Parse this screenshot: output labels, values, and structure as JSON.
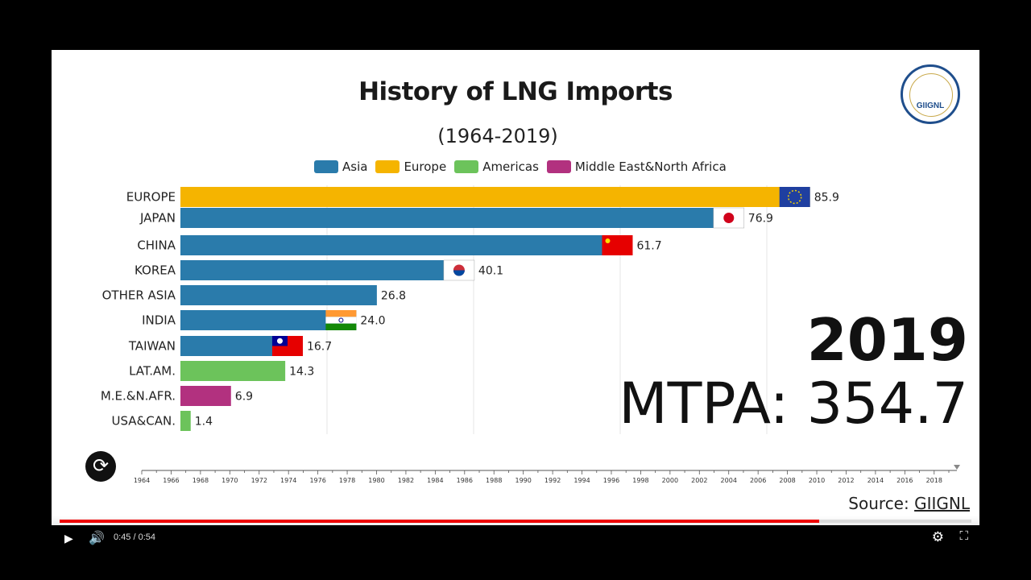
{
  "player": {
    "time": "0:45 / 0:54",
    "progress_fraction": 0.8333,
    "play_icon": "play-icon",
    "volume_icon": "volume-icon",
    "settings_icon": "gear-icon",
    "fullscreen_exit_icon": "exit-fullscreen-icon"
  },
  "video": {
    "title": "History of LNG Imports",
    "subtitle": "(1964-2019)",
    "year": "2019",
    "mtpa": "MTPA: 354.7",
    "source_prefix": "Source: ",
    "source_link": "GIIGNL",
    "logo_text": "GIIGNL"
  },
  "legend": [
    {
      "label": "Asia",
      "color": "#2a7bab"
    },
    {
      "label": "Europe",
      "color": "#f5b400"
    },
    {
      "label": "Americas",
      "color": "#6cc35b"
    },
    {
      "label": "Middle East&North Africa",
      "color": "#b2317f"
    }
  ],
  "chart_data": {
    "type": "bar",
    "orientation": "horizontal",
    "categories": [
      "EUROPE",
      "JAPAN",
      "CHINA",
      "KOREA",
      "OTHER ASIA",
      "INDIA",
      "TAIWAN",
      "LAT.AM.",
      "M.E.&N.AFR.",
      "USA&CAN."
    ],
    "values": [
      85.9,
      76.9,
      61.7,
      40.1,
      26.8,
      24.0,
      16.7,
      14.3,
      6.9,
      1.4
    ],
    "value_labels": [
      "85.9",
      "76.9",
      "61.7",
      "40.1",
      "26.8",
      "24.0",
      "16.7",
      "14.3",
      "6.9",
      "1.4"
    ],
    "groups": [
      "Europe",
      "Asia",
      "Asia",
      "Asia",
      "Asia",
      "Asia",
      "Asia",
      "Americas",
      "Middle East&North Africa",
      "Americas"
    ],
    "colors": [
      "#f5b400",
      "#2a7bab",
      "#2a7bab",
      "#2a7bab",
      "#2a7bab",
      "#2a7bab",
      "#2a7bab",
      "#6cc35b",
      "#b2317f",
      "#6cc35b"
    ],
    "flags": [
      "eu",
      "japan",
      "china",
      "korea",
      "",
      "india",
      "taiwan",
      "",
      "",
      ""
    ],
    "xlim": [
      0,
      90
    ],
    "grid": true,
    "timeline_ticks": [
      "1964",
      "1966",
      "1968",
      "1970",
      "1972",
      "1974",
      "1976",
      "1978",
      "1980",
      "1982",
      "1984",
      "1986",
      "1988",
      "1990",
      "1992",
      "1994",
      "1996",
      "1998",
      "2000",
      "2002",
      "2004",
      "2006",
      "2008",
      "2010",
      "2012",
      "2014",
      "2016",
      "2018"
    ]
  }
}
